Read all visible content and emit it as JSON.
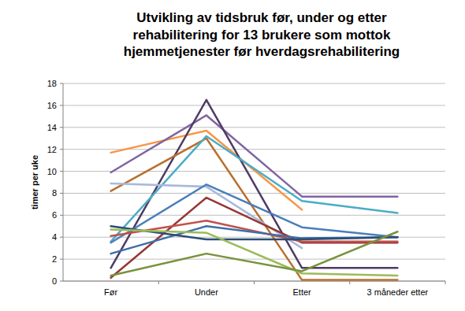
{
  "chart_data": {
    "type": "line",
    "title": "Utvikling av tidsbruk før, under og etter\nrehabilitering for 13 brukere som mottok\nhjemmetjenester før hverdagsrehabilitering",
    "y_label": "timer per uke",
    "categories": [
      "Før",
      "Under",
      "Etter",
      "3 måneder etter"
    ],
    "ylim": [
      0,
      18
    ],
    "yticks": [
      0,
      2,
      4,
      6,
      8,
      10,
      12,
      14,
      16,
      18
    ],
    "grid": true,
    "series": [
      {
        "color": "#f79646",
        "values": [
          11.7,
          13.7,
          6.5,
          null
        ]
      },
      {
        "color": "#8064a2",
        "values": [
          9.9,
          15.1,
          7.7,
          7.7
        ]
      },
      {
        "color": "#4f3b66",
        "values": [
          1.2,
          16.5,
          1.2,
          1.2
        ]
      },
      {
        "color": "#b8702f",
        "values": [
          8.2,
          13.0,
          0.1,
          0.1
        ]
      },
      {
        "color": "#4bacc6",
        "values": [
          3.6,
          13.2,
          7.3,
          6.2
        ]
      },
      {
        "color": "#a7b9dc",
        "values": [
          8.9,
          8.6,
          3.0,
          null
        ]
      },
      {
        "color": "#4a7ebb",
        "values": [
          3.5,
          8.8,
          4.9,
          4.0
        ]
      },
      {
        "color": "#953735",
        "values": [
          0.3,
          7.6,
          3.5,
          3.5
        ]
      },
      {
        "color": "#c0504d",
        "values": [
          4.1,
          5.5,
          3.6,
          3.6
        ]
      },
      {
        "color": "#3d6fa8",
        "values": [
          2.5,
          5.0,
          3.9,
          4.0
        ]
      },
      {
        "color": "#2c4d75",
        "values": [
          5.0,
          3.8,
          3.8,
          4.0
        ]
      },
      {
        "color": "#9bbb59",
        "values": [
          4.7,
          4.4,
          0.7,
          0.5
        ]
      },
      {
        "color": "#77933c",
        "values": [
          0.5,
          2.5,
          0.9,
          4.5
        ]
      }
    ]
  }
}
